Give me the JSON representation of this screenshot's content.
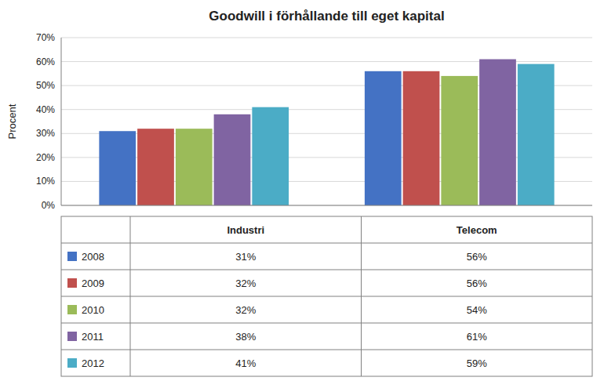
{
  "chart_data": {
    "type": "bar",
    "title": "Goodwill i förhållande till eget kapital",
    "ylabel": "Procent",
    "categories": [
      "Industri",
      "Telecom"
    ],
    "series": [
      {
        "name": "2008",
        "color": "#4472C4",
        "values": [
          0.31,
          0.56
        ],
        "value_labels": [
          "31%",
          "56%"
        ]
      },
      {
        "name": "2009",
        "color": "#C0504D",
        "values": [
          0.32,
          0.56
        ],
        "value_labels": [
          "32%",
          "56%"
        ]
      },
      {
        "name": "2010",
        "color": "#9BBB59",
        "values": [
          0.32,
          0.54
        ],
        "value_labels": [
          "32%",
          "54%"
        ]
      },
      {
        "name": "2011",
        "color": "#8064A2",
        "values": [
          0.38,
          0.61
        ],
        "value_labels": [
          "38%",
          "61%"
        ]
      },
      {
        "name": "2012",
        "color": "#4BACC6",
        "values": [
          0.41,
          0.59
        ],
        "value_labels": [
          "41%",
          "59%"
        ]
      }
    ],
    "ylim": [
      0,
      0.7
    ],
    "yticks": [
      {
        "value": 0.0,
        "label": "0%"
      },
      {
        "value": 0.1,
        "label": "10%"
      },
      {
        "value": 0.2,
        "label": "20%"
      },
      {
        "value": 0.3,
        "label": "30%"
      },
      {
        "value": 0.4,
        "label": "40%"
      },
      {
        "value": 0.5,
        "label": "50%"
      },
      {
        "value": 0.6,
        "label": "60%"
      },
      {
        "value": 0.7,
        "label": "70%"
      }
    ],
    "grid": true,
    "legend": "bottom",
    "tick_labels": "y"
  }
}
